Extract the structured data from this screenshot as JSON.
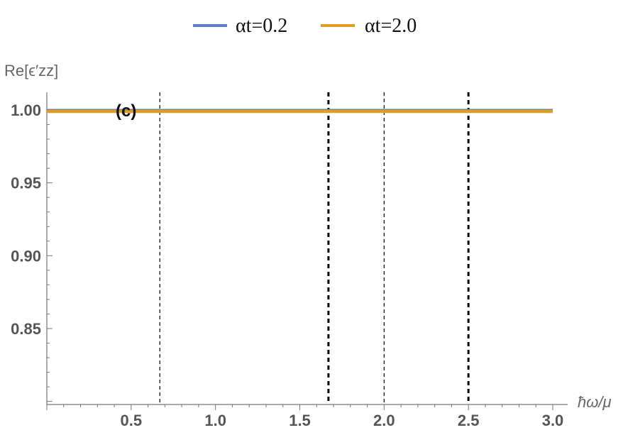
{
  "chart_data": {
    "type": "line",
    "panel_label": "(c)",
    "xlabel": "ħω/μ",
    "ylabel": "Re[ϵ′zz]",
    "xlim": [
      0,
      3.0
    ],
    "ylim": [
      0.8,
      1.005
    ],
    "x_ticks": [
      "0.5",
      "1.0",
      "1.5",
      "2.0",
      "2.5",
      "3.0"
    ],
    "y_ticks": [
      "1.00",
      "0.95",
      "0.90",
      "0.85"
    ],
    "x": [
      0,
      3.0
    ],
    "series": [
      {
        "name": "αt=0.2",
        "color": "#5E81B5",
        "values": [
          1.0,
          1.0
        ]
      },
      {
        "name": "αt=2.0",
        "color": "#E19C24",
        "values": [
          0.999,
          0.999
        ]
      }
    ],
    "vlines": [
      {
        "x": 0.67,
        "style": "thin-dashed"
      },
      {
        "x": 1.67,
        "style": "thick-dashed"
      },
      {
        "x": 2.0,
        "style": "thin-dashed"
      },
      {
        "x": 2.5,
        "style": "thick-dashed"
      }
    ],
    "grid": false,
    "legend_position": "top-center"
  }
}
